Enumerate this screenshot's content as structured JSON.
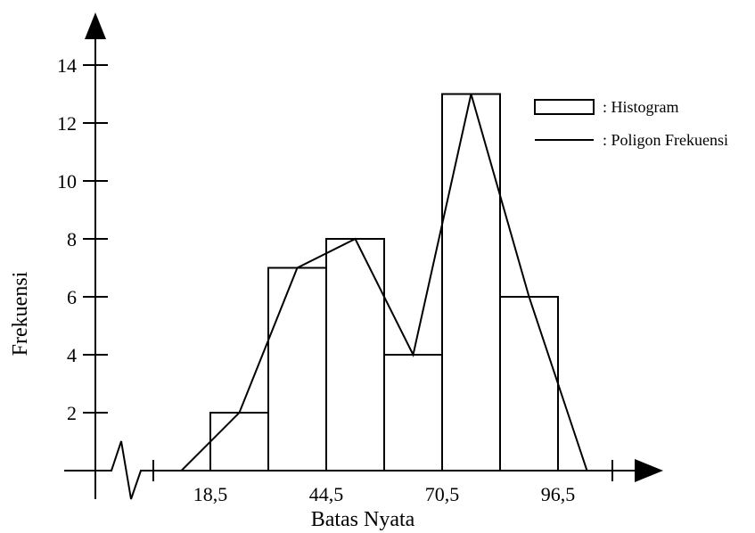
{
  "chart_data": {
    "type": "bar",
    "xlabel": "Batas Nyata",
    "ylabel": "Frekuensi",
    "x_tick_labels": [
      "18,5",
      "44,5",
      "70,5",
      "96,5"
    ],
    "y_ticks": [
      2,
      4,
      6,
      8,
      10,
      12,
      14
    ],
    "ylim": [
      0,
      15
    ],
    "histogram": {
      "name": ": Histogram",
      "bins": [
        {
          "from": 18.5,
          "to": 31.5,
          "value": 2
        },
        {
          "from": 31.5,
          "to": 44.5,
          "value": 7
        },
        {
          "from": 44.5,
          "to": 57.5,
          "value": 8
        },
        {
          "from": 57.5,
          "to": 70.5,
          "value": 4
        },
        {
          "from": 70.5,
          "to": 83.5,
          "value": 13
        },
        {
          "from": 83.5,
          "to": 96.5,
          "value": 6
        }
      ]
    },
    "polygon": {
      "name": ": Poligon Frekuensi",
      "points": [
        {
          "x": 12,
          "y": 0
        },
        {
          "x": 25,
          "y": 2
        },
        {
          "x": 38,
          "y": 7
        },
        {
          "x": 51,
          "y": 8
        },
        {
          "x": 64,
          "y": 4
        },
        {
          "x": 77,
          "y": 13
        },
        {
          "x": 90,
          "y": 6
        },
        {
          "x": 103,
          "y": 0
        }
      ]
    }
  }
}
